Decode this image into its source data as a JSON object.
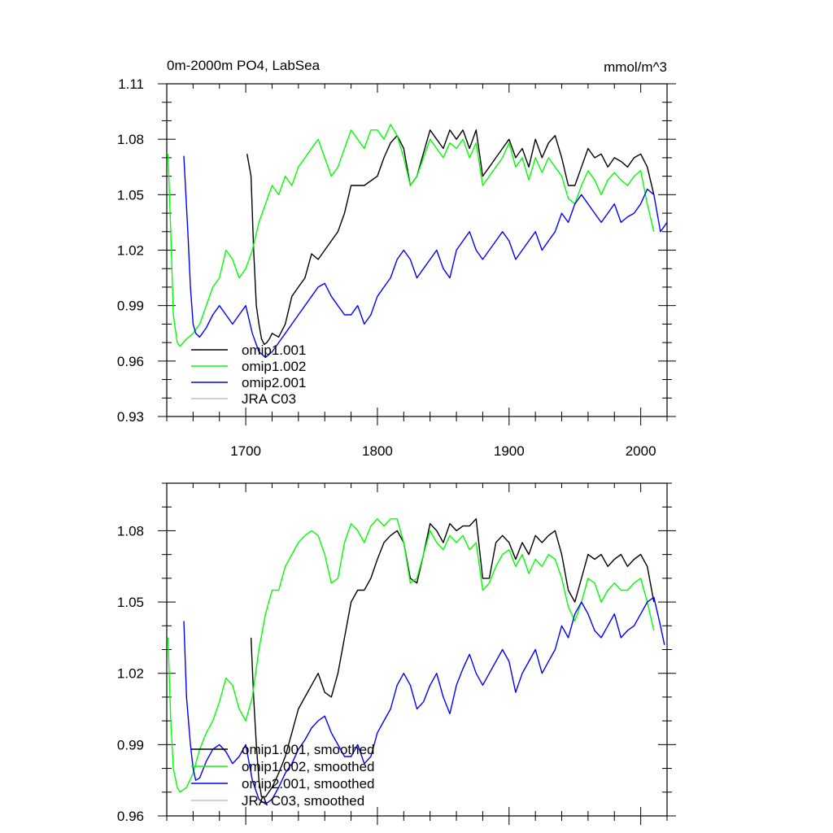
{
  "chart_data": [
    {
      "type": "line",
      "title": "0m-2000m PO4, LabSea",
      "units": "mmol/m^3",
      "xlim": [
        1640,
        2020
      ],
      "ylim": [
        0.93,
        1.11
      ],
      "xticks": [
        1700,
        1800,
        1900,
        2000
      ],
      "yticks": [
        0.93,
        0.96,
        0.99,
        1.02,
        1.05,
        1.08,
        1.11
      ],
      "ytick_labels": [
        "0.93",
        "0.96",
        "0.99",
        "1.02",
        "1.05",
        "1.08",
        "1.11"
      ],
      "legend_position": "bottom-left",
      "series": [
        {
          "name": "omip1.001",
          "color": "#000000",
          "x": [
            1701,
            1704,
            1706,
            1708,
            1710,
            1712,
            1714,
            1716,
            1718,
            1720,
            1725,
            1730,
            1735,
            1740,
            1745,
            1750,
            1755,
            1760,
            1765,
            1770,
            1775,
            1780,
            1790,
            1800,
            1805,
            1810,
            1815,
            1820,
            1825,
            1830,
            1840,
            1845,
            1850,
            1855,
            1860,
            1865,
            1870,
            1875,
            1880,
            1885,
            1890,
            1895,
            1900,
            1905,
            1910,
            1915,
            1920,
            1925,
            1930,
            1935,
            1940,
            1945,
            1950,
            1955,
            1960,
            1965,
            1970,
            1975,
            1980,
            1985,
            1990,
            1995,
            2000,
            2005,
            2010
          ],
          "y": [
            1.072,
            1.06,
            1.02,
            0.99,
            0.98,
            0.972,
            0.969,
            0.97,
            0.972,
            0.975,
            0.973,
            0.98,
            0.995,
            1.0,
            1.005,
            1.018,
            1.015,
            1.02,
            1.025,
            1.03,
            1.04,
            1.055,
            1.055,
            1.06,
            1.07,
            1.078,
            1.082,
            1.075,
            1.055,
            1.06,
            1.085,
            1.08,
            1.075,
            1.085,
            1.08,
            1.085,
            1.075,
            1.085,
            1.06,
            1.065,
            1.07,
            1.075,
            1.08,
            1.07,
            1.075,
            1.065,
            1.08,
            1.07,
            1.078,
            1.082,
            1.07,
            1.055,
            1.055,
            1.065,
            1.075,
            1.07,
            1.072,
            1.065,
            1.07,
            1.068,
            1.065,
            1.07,
            1.072,
            1.065,
            1.05
          ]
        },
        {
          "name": "omip1.002",
          "color": "#00ff00",
          "x": [
            1641,
            1643,
            1645,
            1648,
            1650,
            1655,
            1660,
            1665,
            1670,
            1675,
            1680,
            1685,
            1690,
            1695,
            1700,
            1705,
            1710,
            1715,
            1720,
            1725,
            1730,
            1735,
            1740,
            1745,
            1750,
            1755,
            1760,
            1765,
            1770,
            1775,
            1780,
            1785,
            1790,
            1795,
            1800,
            1805,
            1810,
            1815,
            1820,
            1825,
            1830,
            1835,
            1840,
            1845,
            1850,
            1855,
            1860,
            1865,
            1870,
            1875,
            1880,
            1885,
            1890,
            1895,
            1900,
            1905,
            1910,
            1915,
            1920,
            1925,
            1930,
            1935,
            1940,
            1945,
            1950,
            1955,
            1960,
            1965,
            1970,
            1975,
            1980,
            1985,
            1990,
            1995,
            2000,
            2005,
            2010
          ],
          "y": [
            1.072,
            1.03,
            0.985,
            0.97,
            0.968,
            0.972,
            0.975,
            0.98,
            0.99,
            1.0,
            1.005,
            1.02,
            1.015,
            1.005,
            1.01,
            1.02,
            1.035,
            1.045,
            1.055,
            1.05,
            1.06,
            1.055,
            1.065,
            1.07,
            1.075,
            1.08,
            1.07,
            1.06,
            1.065,
            1.075,
            1.085,
            1.08,
            1.075,
            1.085,
            1.085,
            1.08,
            1.088,
            1.082,
            1.07,
            1.055,
            1.06,
            1.07,
            1.08,
            1.075,
            1.07,
            1.078,
            1.075,
            1.08,
            1.07,
            1.078,
            1.055,
            1.06,
            1.065,
            1.07,
            1.078,
            1.065,
            1.07,
            1.058,
            1.07,
            1.062,
            1.07,
            1.065,
            1.06,
            1.048,
            1.045,
            1.055,
            1.063,
            1.058,
            1.05,
            1.058,
            1.062,
            1.058,
            1.055,
            1.06,
            1.063,
            1.045,
            1.03
          ]
        },
        {
          "name": "omip2.001",
          "color": "#0000ff",
          "x": [
            1653,
            1656,
            1658,
            1660,
            1662,
            1665,
            1670,
            1675,
            1680,
            1685,
            1690,
            1695,
            1700,
            1705,
            1710,
            1715,
            1720,
            1725,
            1730,
            1735,
            1740,
            1745,
            1750,
            1755,
            1760,
            1765,
            1770,
            1775,
            1780,
            1785,
            1790,
            1795,
            1800,
            1805,
            1810,
            1815,
            1820,
            1825,
            1830,
            1835,
            1840,
            1845,
            1850,
            1855,
            1860,
            1865,
            1870,
            1875,
            1880,
            1885,
            1890,
            1895,
            1900,
            1905,
            1910,
            1915,
            1920,
            1925,
            1930,
            1935,
            1940,
            1945,
            1950,
            1955,
            1960,
            1965,
            1970,
            1975,
            1980,
            1985,
            1990,
            1995,
            2000,
            2005,
            2010,
            2015,
            2020
          ],
          "y": [
            1.071,
            1.03,
            1.0,
            0.98,
            0.975,
            0.973,
            0.978,
            0.985,
            0.99,
            0.985,
            0.98,
            0.985,
            0.99,
            0.975,
            0.965,
            0.962,
            0.965,
            0.97,
            0.975,
            0.98,
            0.985,
            0.99,
            0.995,
            1.0,
            1.002,
            0.995,
            0.99,
            0.985,
            0.985,
            0.99,
            0.98,
            0.985,
            0.995,
            1.0,
            1.005,
            1.015,
            1.02,
            1.015,
            1.005,
            1.01,
            1.015,
            1.02,
            1.01,
            1.005,
            1.02,
            1.025,
            1.03,
            1.02,
            1.015,
            1.02,
            1.025,
            1.03,
            1.025,
            1.015,
            1.02,
            1.025,
            1.03,
            1.02,
            1.025,
            1.03,
            1.04,
            1.035,
            1.045,
            1.05,
            1.045,
            1.04,
            1.035,
            1.04,
            1.045,
            1.035,
            1.038,
            1.04,
            1.045,
            1.053,
            1.05,
            1.03,
            1.035
          ]
        }
      ],
      "legend": [
        {
          "label": "omip1.001",
          "color": "#000000"
        },
        {
          "label": "omip1.002",
          "color": "#00ff00"
        },
        {
          "label": "omip2.001",
          "color": "#0000ff"
        },
        {
          "label": "JRA C03",
          "color": "#c0c0c0"
        }
      ]
    },
    {
      "type": "line",
      "title": "",
      "xlim": [
        1640,
        2020
      ],
      "ylim": [
        0.96,
        1.1
      ],
      "xticks": [
        1700,
        1800,
        1900,
        2000
      ],
      "yticks": [
        0.96,
        0.99,
        1.02,
        1.05,
        1.08
      ],
      "ytick_labels": [
        "0.96",
        "0.99",
        "1.02",
        "1.05",
        "1.08"
      ],
      "legend_position": "bottom-left",
      "series": [
        {
          "name": "omip1.001, smoothed",
          "color": "#000000",
          "x": [
            1704,
            1706,
            1708,
            1710,
            1712,
            1715,
            1720,
            1725,
            1730,
            1735,
            1740,
            1745,
            1750,
            1755,
            1760,
            1765,
            1770,
            1775,
            1780,
            1785,
            1790,
            1795,
            1800,
            1805,
            1810,
            1815,
            1820,
            1825,
            1830,
            1835,
            1840,
            1845,
            1850,
            1855,
            1860,
            1865,
            1870,
            1875,
            1880,
            1885,
            1890,
            1895,
            1900,
            1905,
            1910,
            1915,
            1920,
            1925,
            1930,
            1935,
            1940,
            1945,
            1950,
            1955,
            1960,
            1965,
            1970,
            1975,
            1980,
            1985,
            1990,
            1995,
            2000,
            2005,
            2010
          ],
          "y": [
            1.035,
            1.01,
            0.99,
            0.975,
            0.968,
            0.968,
            0.972,
            0.978,
            0.985,
            0.995,
            1.005,
            1.01,
            1.015,
            1.02,
            1.012,
            1.01,
            1.02,
            1.035,
            1.05,
            1.055,
            1.055,
            1.06,
            1.068,
            1.075,
            1.078,
            1.08,
            1.075,
            1.06,
            1.058,
            1.07,
            1.083,
            1.08,
            1.075,
            1.083,
            1.08,
            1.082,
            1.082,
            1.085,
            1.06,
            1.06,
            1.075,
            1.078,
            1.075,
            1.068,
            1.075,
            1.07,
            1.078,
            1.075,
            1.078,
            1.08,
            1.07,
            1.055,
            1.05,
            1.06,
            1.07,
            1.068,
            1.07,
            1.065,
            1.068,
            1.07,
            1.065,
            1.068,
            1.07,
            1.065,
            1.05
          ]
        },
        {
          "name": "omip1.002, smoothed",
          "color": "#00ff00",
          "x": [
            1641,
            1643,
            1645,
            1648,
            1650,
            1655,
            1660,
            1665,
            1670,
            1675,
            1680,
            1685,
            1690,
            1695,
            1700,
            1705,
            1710,
            1715,
            1720,
            1725,
            1730,
            1735,
            1740,
            1745,
            1750,
            1755,
            1760,
            1765,
            1770,
            1775,
            1780,
            1785,
            1790,
            1795,
            1800,
            1805,
            1810,
            1815,
            1820,
            1825,
            1830,
            1835,
            1840,
            1845,
            1850,
            1855,
            1860,
            1865,
            1870,
            1875,
            1880,
            1885,
            1890,
            1895,
            1900,
            1905,
            1910,
            1915,
            1920,
            1925,
            1930,
            1935,
            1940,
            1945,
            1950,
            1955,
            1960,
            1965,
            1970,
            1975,
            1980,
            1985,
            1990,
            1995,
            2000,
            2005,
            2010
          ],
          "y": [
            1.035,
            1.0,
            0.98,
            0.972,
            0.97,
            0.972,
            0.978,
            0.988,
            0.995,
            1.0,
            1.008,
            1.018,
            1.015,
            1.005,
            1.0,
            1.01,
            1.03,
            1.045,
            1.055,
            1.055,
            1.065,
            1.07,
            1.075,
            1.078,
            1.08,
            1.078,
            1.07,
            1.058,
            1.06,
            1.075,
            1.083,
            1.08,
            1.075,
            1.082,
            1.085,
            1.082,
            1.085,
            1.085,
            1.075,
            1.058,
            1.06,
            1.07,
            1.08,
            1.075,
            1.072,
            1.078,
            1.075,
            1.078,
            1.072,
            1.075,
            1.055,
            1.058,
            1.065,
            1.07,
            1.072,
            1.065,
            1.07,
            1.062,
            1.068,
            1.065,
            1.07,
            1.068,
            1.06,
            1.048,
            1.042,
            1.05,
            1.06,
            1.058,
            1.05,
            1.055,
            1.058,
            1.055,
            1.055,
            1.058,
            1.06,
            1.05,
            1.038
          ]
        },
        {
          "name": "omip2.001, smoothed",
          "color": "#0000ff",
          "x": [
            1653,
            1655,
            1658,
            1660,
            1662,
            1665,
            1670,
            1675,
            1680,
            1685,
            1690,
            1695,
            1700,
            1705,
            1710,
            1715,
            1720,
            1725,
            1730,
            1735,
            1740,
            1745,
            1750,
            1755,
            1760,
            1765,
            1770,
            1775,
            1780,
            1785,
            1790,
            1795,
            1800,
            1805,
            1810,
            1815,
            1820,
            1825,
            1830,
            1835,
            1840,
            1845,
            1850,
            1855,
            1860,
            1865,
            1870,
            1875,
            1880,
            1885,
            1890,
            1895,
            1900,
            1905,
            1910,
            1915,
            1920,
            1925,
            1930,
            1935,
            1940,
            1945,
            1950,
            1955,
            1960,
            1965,
            1970,
            1975,
            1980,
            1985,
            1990,
            1995,
            2000,
            2005,
            2010,
            2015,
            2018
          ],
          "y": [
            1.042,
            1.01,
            0.99,
            0.98,
            0.975,
            0.976,
            0.983,
            0.988,
            0.99,
            0.987,
            0.982,
            0.985,
            0.99,
            0.975,
            0.967,
            0.965,
            0.967,
            0.972,
            0.978,
            0.982,
            0.988,
            0.992,
            0.997,
            1.0,
            1.002,
            0.995,
            0.99,
            0.985,
            0.985,
            0.99,
            0.982,
            0.985,
            0.995,
            1.0,
            1.005,
            1.015,
            1.02,
            1.015,
            1.005,
            1.008,
            1.015,
            1.02,
            1.01,
            1.003,
            1.015,
            1.022,
            1.028,
            1.02,
            1.015,
            1.02,
            1.025,
            1.03,
            1.025,
            1.012,
            1.02,
            1.025,
            1.03,
            1.02,
            1.025,
            1.03,
            1.04,
            1.035,
            1.045,
            1.05,
            1.045,
            1.038,
            1.035,
            1.04,
            1.045,
            1.035,
            1.038,
            1.04,
            1.045,
            1.05,
            1.052,
            1.04,
            1.032
          ]
        }
      ],
      "legend": [
        {
          "label": "omip1.001, smoothed",
          "color": "#000000"
        },
        {
          "label": "omip1.002, smoothed",
          "color": "#00ff00"
        },
        {
          "label": "omip2.001, smoothed",
          "color": "#0000ff"
        },
        {
          "label": "JRA C03, smoothed",
          "color": "#c0c0c0"
        }
      ]
    }
  ]
}
